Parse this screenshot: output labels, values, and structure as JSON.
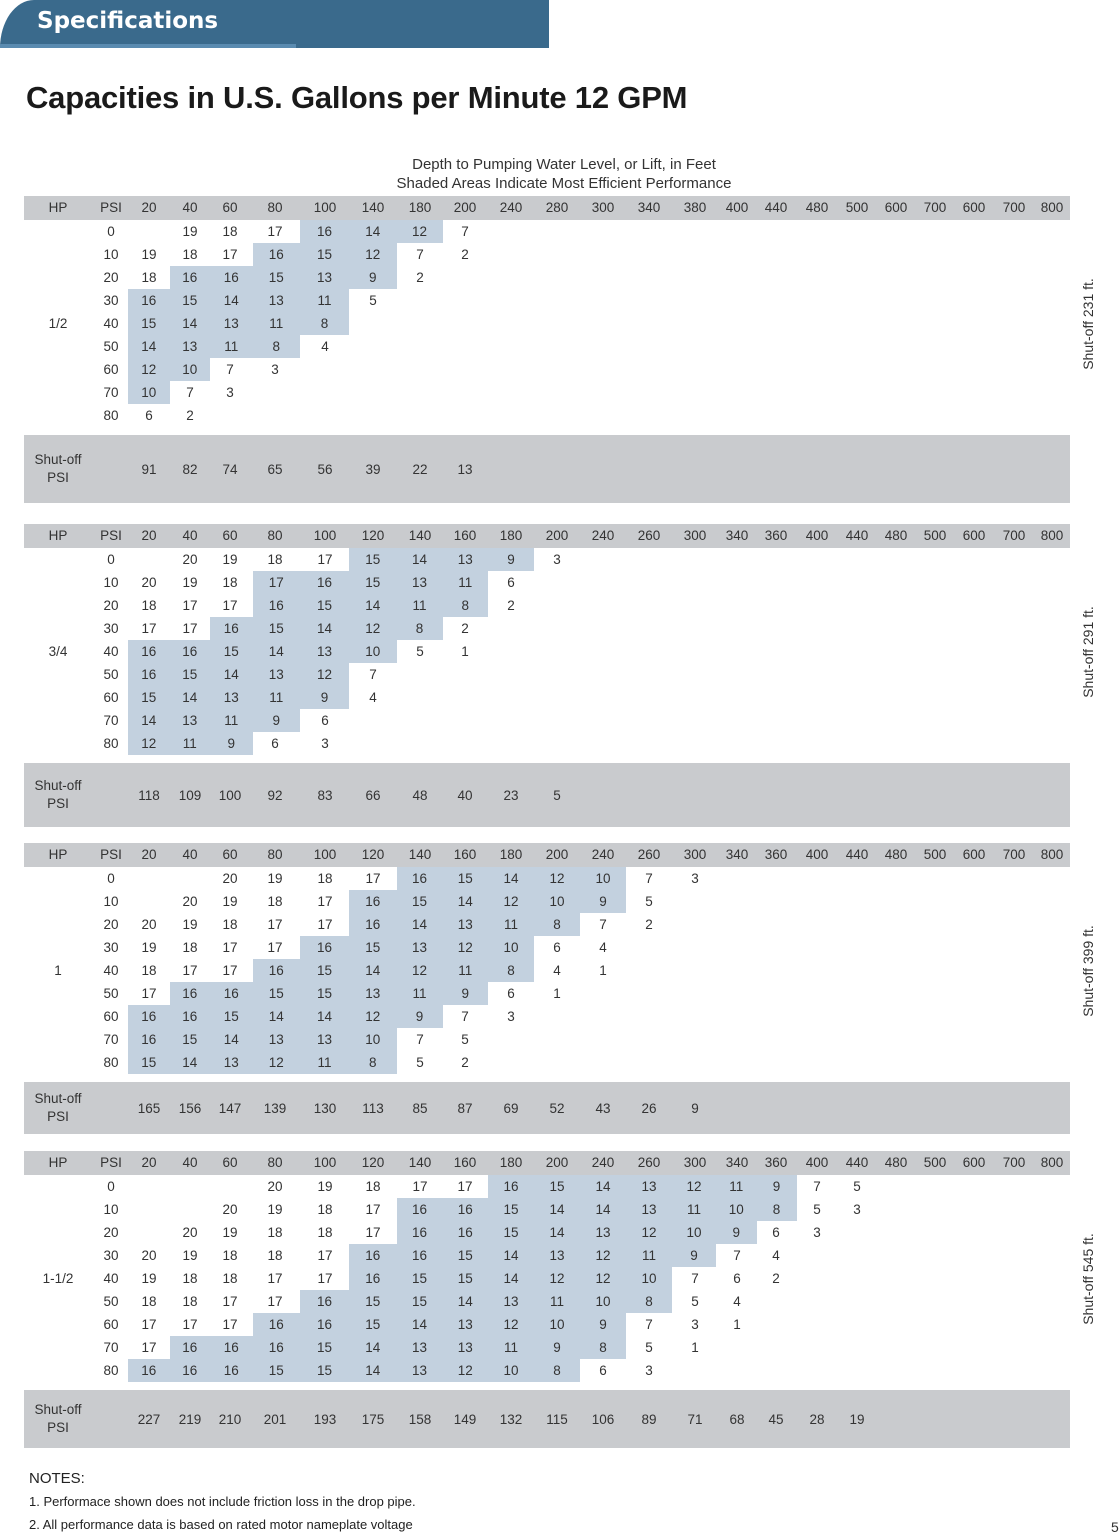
{
  "header": {
    "tab_label": "Specifications"
  },
  "title": "Capacities in U.S. Gallons per Minute 12 GPM",
  "caption": {
    "line1": "Depth to Pumping Water Level, or Lift, in Feet",
    "line2": "Shaded Areas Indicate Most Efficient Performance"
  },
  "labels": {
    "hp": "HP",
    "psi": "PSI",
    "shutoff_psi_line1": "Shut-off",
    "shutoff_psi_line2": "PSI"
  },
  "tables": [
    {
      "hp": "1/2",
      "shutoff_ft": "Shut-off 231 ft.",
      "depths": [
        "20",
        "40",
        "60",
        "80",
        "100",
        "140",
        "180",
        "200",
        "240",
        "280",
        "300",
        "340",
        "380",
        "400",
        "440",
        "480",
        "500",
        "600",
        "700",
        "600",
        "700",
        "800"
      ],
      "rows": [
        {
          "psi": "0",
          "values": [
            "",
            "19",
            "18",
            "17",
            "16",
            "14",
            "12",
            "7"
          ],
          "shaded": [
            4,
            5,
            6
          ]
        },
        {
          "psi": "10",
          "values": [
            "19",
            "18",
            "17",
            "16",
            "15",
            "12",
            "7",
            "2"
          ],
          "shaded": [
            3,
            4,
            5
          ]
        },
        {
          "psi": "20",
          "values": [
            "18",
            "16",
            "16",
            "15",
            "13",
            "9",
            "2"
          ],
          "shaded": [
            1,
            2,
            3,
            4,
            5
          ]
        },
        {
          "psi": "30",
          "values": [
            "16",
            "15",
            "14",
            "13",
            "11",
            "5"
          ],
          "shaded": [
            0,
            1,
            2,
            3,
            4
          ]
        },
        {
          "psi": "40",
          "values": [
            "15",
            "14",
            "13",
            "11",
            "8"
          ],
          "shaded": [
            0,
            1,
            2,
            3,
            4
          ]
        },
        {
          "psi": "50",
          "values": [
            "14",
            "13",
            "11",
            "8",
            "4"
          ],
          "shaded": [
            0,
            1,
            2,
            3
          ]
        },
        {
          "psi": "60",
          "values": [
            "12",
            "10",
            "7",
            "3"
          ],
          "shaded": [
            0,
            1
          ]
        },
        {
          "psi": "70",
          "values": [
            "10",
            "7",
            "3"
          ],
          "shaded": [
            0
          ]
        },
        {
          "psi": "80",
          "values": [
            "6",
            "2"
          ],
          "shaded": []
        }
      ],
      "shutoff_psi": [
        "91",
        "82",
        "74",
        "65",
        "56",
        "39",
        "22",
        "13"
      ]
    },
    {
      "hp": "3/4",
      "shutoff_ft": "Shut-off 291 ft.",
      "depths": [
        "20",
        "40",
        "60",
        "80",
        "100",
        "120",
        "140",
        "160",
        "180",
        "200",
        "240",
        "260",
        "300",
        "340",
        "360",
        "400",
        "440",
        "480",
        "500",
        "600",
        "700",
        "800"
      ],
      "rows": [
        {
          "psi": "0",
          "values": [
            "",
            "20",
            "19",
            "18",
            "17",
            "15",
            "14",
            "13",
            "9",
            "3"
          ],
          "shaded": [
            5,
            6,
            7,
            8
          ]
        },
        {
          "psi": "10",
          "values": [
            "20",
            "19",
            "18",
            "17",
            "16",
            "15",
            "13",
            "11",
            "6"
          ],
          "shaded": [
            3,
            4,
            5,
            6,
            7
          ]
        },
        {
          "psi": "20",
          "values": [
            "18",
            "17",
            "17",
            "16",
            "15",
            "14",
            "11",
            "8",
            "2"
          ],
          "shaded": [
            3,
            4,
            5,
            6,
            7
          ]
        },
        {
          "psi": "30",
          "values": [
            "17",
            "17",
            "16",
            "15",
            "14",
            "12",
            "8",
            "2"
          ],
          "shaded": [
            2,
            3,
            4,
            5,
            6
          ]
        },
        {
          "psi": "40",
          "values": [
            "16",
            "16",
            "15",
            "14",
            "13",
            "10",
            "5",
            "1"
          ],
          "shaded": [
            0,
            1,
            2,
            3,
            4,
            5
          ]
        },
        {
          "psi": "50",
          "values": [
            "16",
            "15",
            "14",
            "13",
            "12",
            "7"
          ],
          "shaded": [
            0,
            1,
            2,
            3,
            4
          ]
        },
        {
          "psi": "60",
          "values": [
            "15",
            "14",
            "13",
            "11",
            "9",
            "4"
          ],
          "shaded": [
            0,
            1,
            2,
            3,
            4
          ]
        },
        {
          "psi": "70",
          "values": [
            "14",
            "13",
            "11",
            "9",
            "6"
          ],
          "shaded": [
            0,
            1,
            2,
            3
          ]
        },
        {
          "psi": "80",
          "values": [
            "12",
            "11",
            "9",
            "6",
            "3"
          ],
          "shaded": [
            0,
            1,
            2
          ]
        }
      ],
      "shutoff_psi": [
        "118",
        "109",
        "100",
        "92",
        "83",
        "66",
        "48",
        "40",
        "23",
        "5"
      ]
    },
    {
      "hp": "1",
      "shutoff_ft": "Shut-off 399 ft.",
      "depths": [
        "20",
        "40",
        "60",
        "80",
        "100",
        "120",
        "140",
        "160",
        "180",
        "200",
        "240",
        "260",
        "300",
        "340",
        "360",
        "400",
        "440",
        "480",
        "500",
        "600",
        "700",
        "800"
      ],
      "rows": [
        {
          "psi": "0",
          "values": [
            "",
            "",
            "20",
            "19",
            "18",
            "17",
            "16",
            "15",
            "14",
            "12",
            "10",
            "7",
            "3"
          ],
          "shaded": [
            6,
            7,
            8,
            9,
            10
          ]
        },
        {
          "psi": "10",
          "values": [
            "",
            "20",
            "19",
            "18",
            "17",
            "16",
            "15",
            "14",
            "12",
            "10",
            "9",
            "5"
          ],
          "shaded": [
            5,
            6,
            7,
            8,
            9,
            10
          ]
        },
        {
          "psi": "20",
          "values": [
            "20",
            "19",
            "18",
            "17",
            "17",
            "16",
            "14",
            "13",
            "11",
            "8",
            "7",
            "2"
          ],
          "shaded": [
            5,
            6,
            7,
            8,
            9
          ]
        },
        {
          "psi": "30",
          "values": [
            "19",
            "18",
            "17",
            "17",
            "16",
            "15",
            "13",
            "12",
            "10",
            "6",
            "4"
          ],
          "shaded": [
            4,
            5,
            6,
            7,
            8
          ]
        },
        {
          "psi": "40",
          "values": [
            "18",
            "17",
            "17",
            "16",
            "15",
            "14",
            "12",
            "11",
            "8",
            "4",
            "1"
          ],
          "shaded": [
            3,
            4,
            5,
            6,
            7,
            8
          ]
        },
        {
          "psi": "50",
          "values": [
            "17",
            "16",
            "16",
            "15",
            "15",
            "13",
            "11",
            "9",
            "6",
            "1"
          ],
          "shaded": [
            1,
            2,
            3,
            4,
            5,
            6,
            7
          ]
        },
        {
          "psi": "60",
          "values": [
            "16",
            "16",
            "15",
            "14",
            "14",
            "12",
            "9",
            "7",
            "3"
          ],
          "shaded": [
            0,
            1,
            2,
            3,
            4,
            5,
            6
          ]
        },
        {
          "psi": "70",
          "values": [
            "16",
            "15",
            "14",
            "13",
            "13",
            "10",
            "7",
            "5"
          ],
          "shaded": [
            0,
            1,
            2,
            3,
            4,
            5
          ]
        },
        {
          "psi": "80",
          "values": [
            "15",
            "14",
            "13",
            "12",
            "11",
            "8",
            "5",
            "2"
          ],
          "shaded": [
            0,
            1,
            2,
            3,
            4,
            5
          ]
        }
      ],
      "shutoff_psi": [
        "165",
        "156",
        "147",
        "139",
        "130",
        "113",
        "85",
        "87",
        "69",
        "52",
        "43",
        "26",
        "9"
      ]
    },
    {
      "hp": "1-1/2",
      "shutoff_ft": "Shut-off 545 ft.",
      "depths": [
        "20",
        "40",
        "60",
        "80",
        "100",
        "120",
        "140",
        "160",
        "180",
        "200",
        "240",
        "260",
        "300",
        "340",
        "360",
        "400",
        "440",
        "480",
        "500",
        "600",
        "700",
        "800"
      ],
      "rows": [
        {
          "psi": "0",
          "values": [
            "",
            "",
            "",
            "20",
            "19",
            "18",
            "17",
            "17",
            "16",
            "15",
            "14",
            "13",
            "12",
            "11",
            "9",
            "7",
            "5"
          ],
          "shaded": [
            8,
            9,
            10,
            11,
            12,
            13,
            14
          ]
        },
        {
          "psi": "10",
          "values": [
            "",
            "",
            "20",
            "19",
            "18",
            "17",
            "16",
            "16",
            "15",
            "14",
            "14",
            "13",
            "11",
            "10",
            "8",
            "5",
            "3"
          ],
          "shaded": [
            6,
            7,
            8,
            9,
            10,
            11,
            12,
            13,
            14
          ]
        },
        {
          "psi": "20",
          "values": [
            "",
            "20",
            "19",
            "18",
            "18",
            "17",
            "16",
            "16",
            "15",
            "14",
            "13",
            "12",
            "10",
            "9",
            "6",
            "3"
          ],
          "shaded": [
            6,
            7,
            8,
            9,
            10,
            11,
            12,
            13
          ]
        },
        {
          "psi": "30",
          "values": [
            "20",
            "19",
            "18",
            "18",
            "17",
            "16",
            "16",
            "15",
            "14",
            "13",
            "12",
            "11",
            "9",
            "7",
            "4"
          ],
          "shaded": [
            5,
            6,
            7,
            8,
            9,
            10,
            11,
            12
          ]
        },
        {
          "psi": "40",
          "values": [
            "19",
            "18",
            "18",
            "17",
            "17",
            "16",
            "15",
            "15",
            "14",
            "12",
            "12",
            "10",
            "7",
            "6",
            "2"
          ],
          "shaded": [
            5,
            6,
            7,
            8,
            9,
            10,
            11
          ]
        },
        {
          "psi": "50",
          "values": [
            "18",
            "18",
            "17",
            "17",
            "16",
            "15",
            "15",
            "14",
            "13",
            "11",
            "10",
            "8",
            "5",
            "4"
          ],
          "shaded": [
            4,
            5,
            6,
            7,
            8,
            9,
            10,
            11
          ]
        },
        {
          "psi": "60",
          "values": [
            "17",
            "17",
            "17",
            "16",
            "16",
            "15",
            "14",
            "13",
            "12",
            "10",
            "9",
            "7",
            "3",
            "1"
          ],
          "shaded": [
            3,
            4,
            5,
            6,
            7,
            8,
            9,
            10
          ]
        },
        {
          "psi": "70",
          "values": [
            "17",
            "16",
            "16",
            "16",
            "15",
            "14",
            "13",
            "13",
            "11",
            "9",
            "8",
            "5",
            "1"
          ],
          "shaded": [
            1,
            2,
            3,
            4,
            5,
            6,
            7,
            8,
            9,
            10
          ]
        },
        {
          "psi": "80",
          "values": [
            "16",
            "16",
            "16",
            "15",
            "15",
            "14",
            "13",
            "12",
            "10",
            "8",
            "6",
            "3"
          ],
          "shaded": [
            0,
            1,
            2,
            3,
            4,
            5,
            6,
            7,
            8,
            9
          ]
        }
      ],
      "shutoff_psi": [
        "227",
        "219",
        "210",
        "201",
        "193",
        "175",
        "158",
        "149",
        "132",
        "115",
        "106",
        "89",
        "71",
        "68",
        "45",
        "28",
        "19"
      ]
    }
  ],
  "notes": {
    "title": "NOTES:",
    "items": [
      "1. Performace shown does not include friction loss in the drop pipe.",
      "2. All performance data is based on rated motor nameplate voltage"
    ]
  },
  "page_number": "5"
}
